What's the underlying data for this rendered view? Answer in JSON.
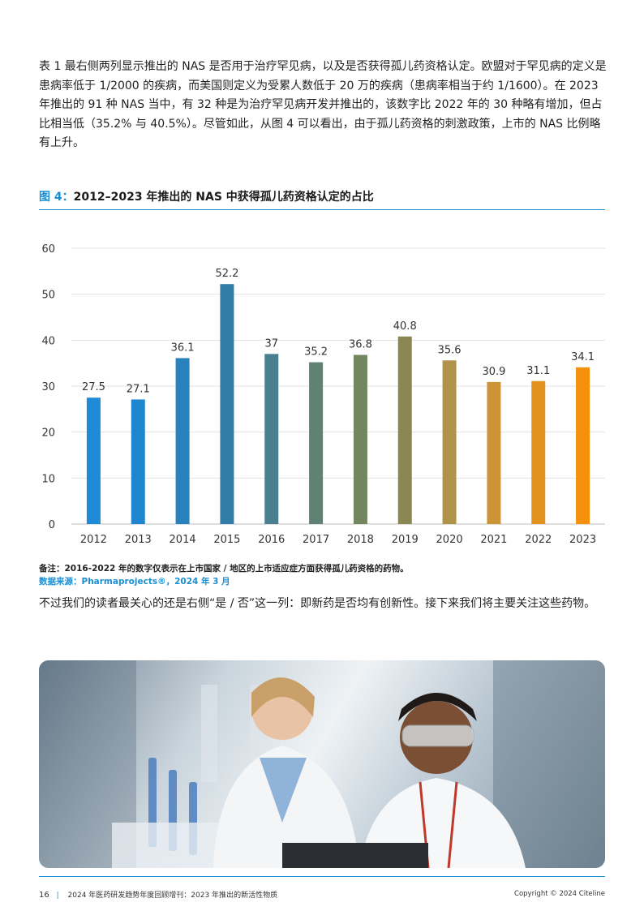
{
  "intro_paragraph": "表 1 最右侧两列显示推出的 NAS 是否用于治疗罕见病，以及是否获得孤儿药资格认定。欧盟对于罕见病的定义是患病率低于 1/2000 的疾病，而美国则定义为受累人数低于 20 万的疾病（患病率相当于约 1/1600）。在 2023 年推出的 91 种 NAS 当中，有 32 种是为治疗罕见病开发并推出的，该数字比 2022 年的 30 种略有增加，但占比相当低（35.2% 与 40.5%）。尽管如此，从图 4 可以看出，由于孤儿药资格的刺激政策，上市的 NAS 比例略有上升。",
  "figure": {
    "label": "图 4：",
    "title": "2012–2023 年推出的 NAS 中获得孤儿药资格认定的占比"
  },
  "chart_data": {
    "type": "bar",
    "categories": [
      "2012",
      "2013",
      "2014",
      "2015",
      "2016",
      "2017",
      "2018",
      "2019",
      "2020",
      "2021",
      "2022",
      "2023"
    ],
    "values": [
      27.5,
      27.1,
      36.1,
      52.2,
      37,
      35.2,
      36.8,
      40.8,
      35.6,
      30.9,
      31.1,
      34.1
    ],
    "data_labels": [
      "27.5",
      "27.1",
      "36.1",
      "52.2",
      "37",
      "35.2",
      "36.8",
      "40.8",
      "35.6",
      "30.9",
      "31.1",
      "34.1"
    ],
    "ylim": [
      0,
      60
    ],
    "yticks": [
      0,
      10,
      20,
      30,
      40,
      50,
      60
    ],
    "grid": true,
    "bar_colors": [
      "#1f8ad6",
      "#1d86cf",
      "#2a82bd",
      "#327da8",
      "#4a7f8f",
      "#5f8275",
      "#72865f",
      "#8a8752",
      "#b1924a",
      "#cc9337",
      "#e2921e",
      "#f5900c"
    ]
  },
  "note": "备注：2016-2022 年的数字仅表示在上市国家 / 地区的上市适应症方面获得孤儿药资格的药物。",
  "source": "数据来源：Pharmaprojects®，2024 年 3 月",
  "outro_paragraph": "不过我们的读者最关心的还是右侧“是 / 否”这一列：即新药是否均有创新性。接下来我们将主要关注这些药物。",
  "footer": {
    "page_number": "16",
    "separator": "|",
    "publication": "2024 年医药研发趋势年度回顾增刊：2023 年推出的新活性物质",
    "copyright": "Copyright © 2024 Citeline"
  }
}
